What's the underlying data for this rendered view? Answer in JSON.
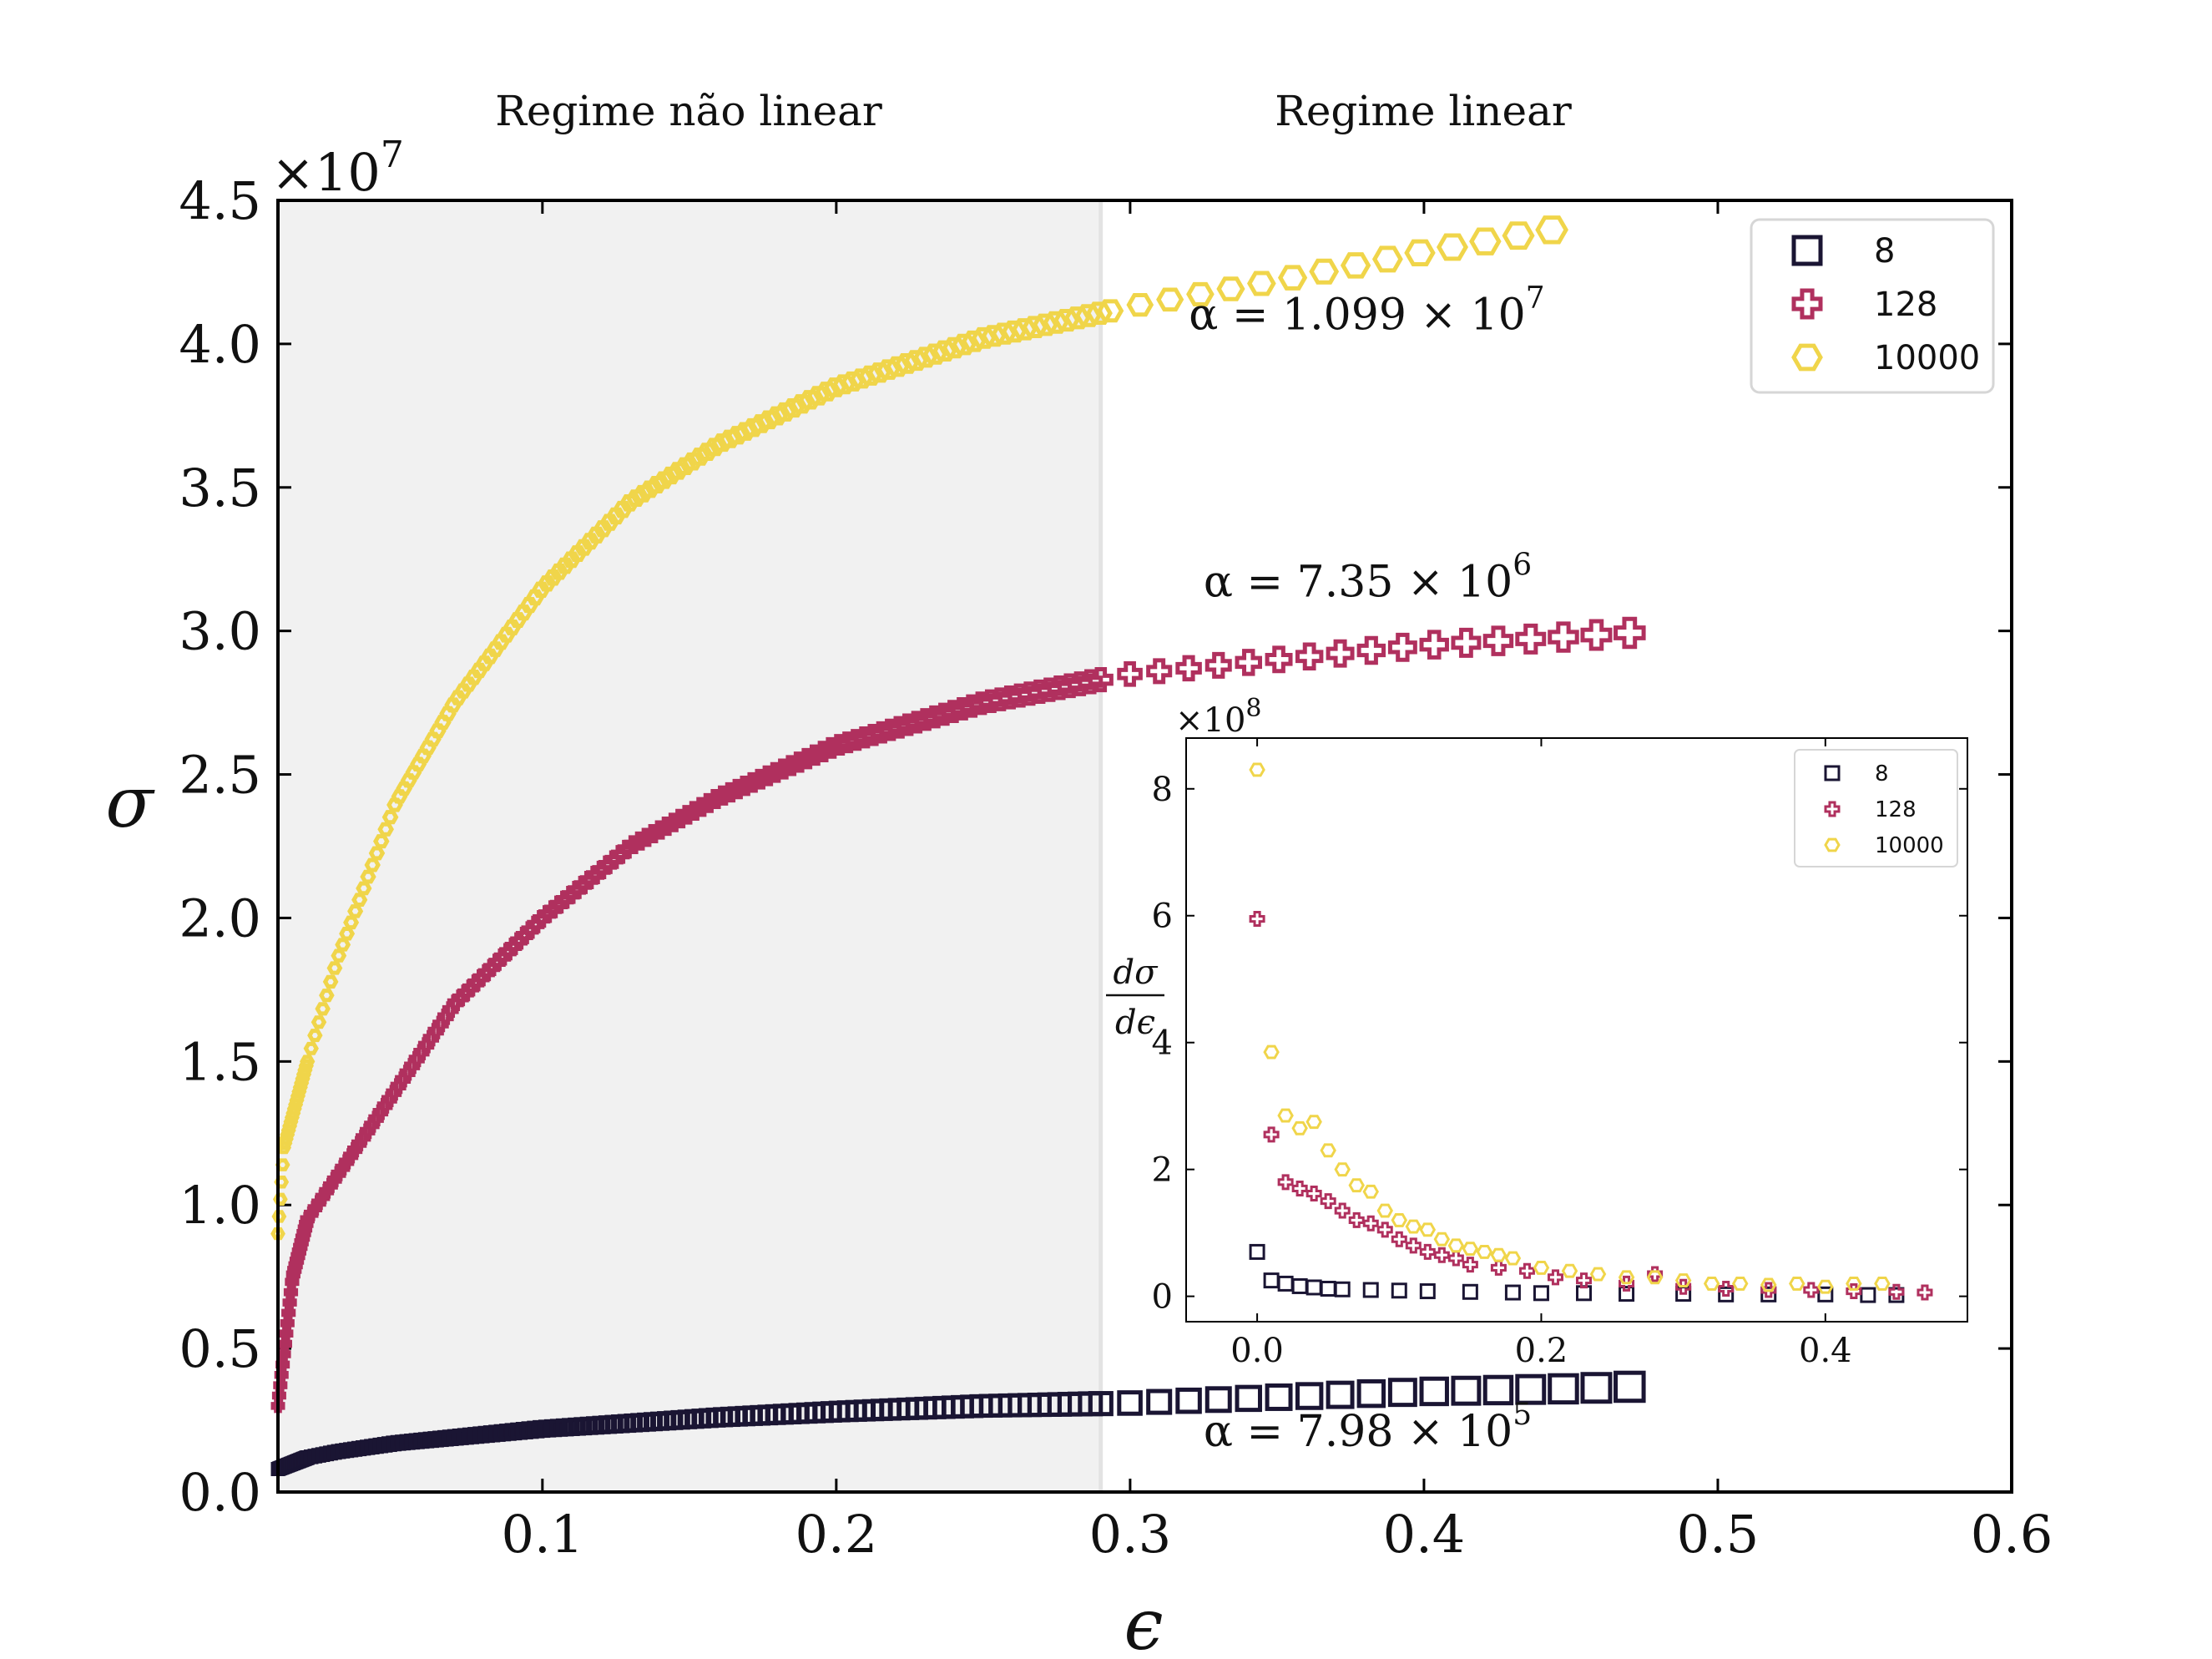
{
  "colors": {
    "s8": "#1a1533",
    "s128": "#b0305e",
    "s10000": "#f0d54a",
    "shade": "#f1f1f1",
    "divider": "#e3e3e3"
  },
  "regions": {
    "nonlinear_label": "Regime não linear",
    "linear_label": "Regime linear",
    "boundary_x": 0.29
  },
  "chart_data": [
    {
      "type": "scatter",
      "xlabel": "ϵ",
      "ylabel": "σ",
      "xlim": [
        0.01,
        0.6
      ],
      "ylim": [
        0,
        4.5
      ],
      "y_multiplier": "×10",
      "y_exponent": "7",
      "xticks": [
        "0.1",
        "0.2",
        "0.3",
        "0.4",
        "0.5",
        "0.6"
      ],
      "xtick_values": [
        0.1,
        0.2,
        0.3,
        0.4,
        0.5,
        0.6
      ],
      "yticks": [
        "0.0",
        "0.5",
        "1.0",
        "1.5",
        "2.0",
        "2.5",
        "3.0",
        "3.5",
        "4.0",
        "4.5"
      ],
      "ytick_values": [
        0,
        0.5,
        1.0,
        1.5,
        2.0,
        2.5,
        3.0,
        3.5,
        4.0,
        4.5
      ],
      "legend_position": "top-right",
      "series": [
        {
          "name": "8",
          "marker": "square",
          "x": [
            0.01,
            0.02,
            0.03,
            0.05,
            0.07,
            0.1,
            0.13,
            0.16,
            0.2,
            0.25,
            0.3,
            0.35,
            0.4,
            0.45,
            0.48
          ],
          "y": [
            0.08,
            0.12,
            0.14,
            0.17,
            0.19,
            0.22,
            0.24,
            0.26,
            0.28,
            0.3,
            0.31,
            0.33,
            0.35,
            0.36,
            0.37
          ]
        },
        {
          "name": "128",
          "marker": "plus",
          "x": [
            0.01,
            0.015,
            0.02,
            0.03,
            0.05,
            0.07,
            0.1,
            0.13,
            0.16,
            0.2,
            0.25,
            0.3,
            0.35,
            0.4,
            0.45,
            0.48
          ],
          "y": [
            0.3,
            0.75,
            0.95,
            1.1,
            1.4,
            1.7,
            2.0,
            2.25,
            2.42,
            2.6,
            2.75,
            2.85,
            2.9,
            2.95,
            2.98,
            3.0
          ]
        },
        {
          "name": "10000",
          "marker": "hexagon",
          "x": [
            0.01,
            0.012,
            0.02,
            0.03,
            0.05,
            0.07,
            0.1,
            0.13,
            0.16,
            0.2,
            0.25,
            0.3,
            0.35,
            0.4,
            0.445
          ],
          "y": [
            0.9,
            1.2,
            1.5,
            1.85,
            2.4,
            2.75,
            3.15,
            3.45,
            3.65,
            3.85,
            4.02,
            4.13,
            4.22,
            4.32,
            4.4
          ]
        }
      ],
      "annotations": [
        {
          "text": "α = 1.099 × 10",
          "sup": "7",
          "x": 0.32,
          "y": 4.05
        },
        {
          "text": "α = 7.35 × 10",
          "sup": "6",
          "x": 0.325,
          "y": 3.12
        },
        {
          "text": "α = 7.98 × 10",
          "sup": "5",
          "x": 0.325,
          "y": 0.16
        }
      ]
    },
    {
      "type": "scatter",
      "title": "",
      "ylabel_num": "dσ",
      "ylabel_den": "dϵ",
      "xlim": [
        -0.05,
        0.5
      ],
      "ylim": [
        -0.4,
        8.8
      ],
      "y_multiplier": "×10",
      "y_exponent": "8",
      "xticks": [
        "0.0",
        "0.2",
        "0.4"
      ],
      "xtick_values": [
        0.0,
        0.2,
        0.4
      ],
      "yticks": [
        "0",
        "2",
        "4",
        "6",
        "8"
      ],
      "ytick_values": [
        0,
        2,
        4,
        6,
        8
      ],
      "legend_position": "top-right",
      "series": [
        {
          "name": "8",
          "marker": "square",
          "x": [
            0.0,
            0.01,
            0.02,
            0.03,
            0.04,
            0.05,
            0.06,
            0.08,
            0.1,
            0.12,
            0.15,
            0.18,
            0.2,
            0.23,
            0.26,
            0.3,
            0.33,
            0.36,
            0.4,
            0.43,
            0.45
          ],
          "y": [
            0.7,
            0.25,
            0.2,
            0.16,
            0.14,
            0.12,
            0.11,
            0.1,
            0.09,
            0.08,
            0.07,
            0.06,
            0.05,
            0.05,
            0.04,
            0.04,
            0.03,
            0.03,
            0.03,
            0.02,
            0.02
          ]
        },
        {
          "name": "128",
          "marker": "plus",
          "x": [
            0.0,
            0.01,
            0.02,
            0.03,
            0.04,
            0.05,
            0.06,
            0.07,
            0.08,
            0.09,
            0.1,
            0.11,
            0.12,
            0.13,
            0.14,
            0.15,
            0.17,
            0.19,
            0.21,
            0.23,
            0.26,
            0.28,
            0.3,
            0.33,
            0.36,
            0.39,
            0.42,
            0.45,
            0.47
          ],
          "y": [
            5.95,
            2.55,
            1.8,
            1.7,
            1.62,
            1.5,
            1.35,
            1.2,
            1.15,
            1.05,
            0.9,
            0.8,
            0.7,
            0.65,
            0.6,
            0.5,
            0.45,
            0.4,
            0.3,
            0.25,
            0.2,
            0.35,
            0.15,
            0.12,
            0.1,
            0.1,
            0.08,
            0.07,
            0.06
          ]
        },
        {
          "name": "10000",
          "marker": "hexagon",
          "x": [
            0.0,
            0.01,
            0.02,
            0.03,
            0.04,
            0.05,
            0.06,
            0.07,
            0.08,
            0.09,
            0.1,
            0.11,
            0.12,
            0.13,
            0.14,
            0.15,
            0.16,
            0.17,
            0.18,
            0.2,
            0.22,
            0.24,
            0.26,
            0.28,
            0.3,
            0.32,
            0.34,
            0.36,
            0.38,
            0.4,
            0.42,
            0.44
          ],
          "y": [
            8.3,
            3.85,
            2.85,
            2.65,
            2.75,
            2.3,
            2.0,
            1.75,
            1.65,
            1.35,
            1.2,
            1.1,
            1.05,
            0.9,
            0.8,
            0.75,
            0.7,
            0.65,
            0.6,
            0.45,
            0.4,
            0.35,
            0.3,
            0.3,
            0.25,
            0.2,
            0.2,
            0.18,
            0.2,
            0.15,
            0.2,
            0.2
          ]
        }
      ]
    }
  ]
}
